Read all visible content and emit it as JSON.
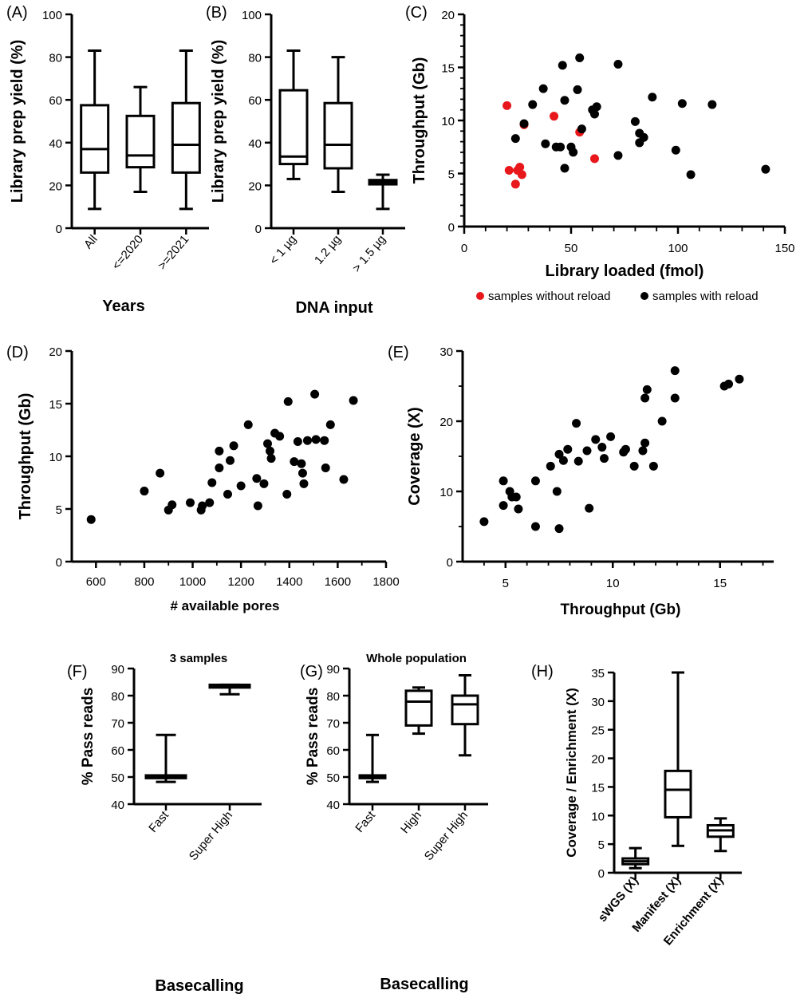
{
  "chart_data": [
    {
      "id": "A",
      "type": "box",
      "panel_label": "(A)",
      "title": "",
      "xlabel": "Years",
      "ylabel": "Library prep yield (%)",
      "ylim": [
        0,
        100
      ],
      "yticks": [
        "0",
        "20",
        "40",
        "60",
        "80",
        "100"
      ],
      "categories": [
        "All",
        "<=2020",
        ">=2021"
      ],
      "boxes": [
        {
          "min": 9,
          "q1": 26,
          "median": 37,
          "q3": 57.5,
          "max": 83
        },
        {
          "min": 17,
          "q1": 28.5,
          "median": 34,
          "q3": 52.5,
          "max": 66
        },
        {
          "min": 9,
          "q1": 26,
          "median": 39,
          "q3": 58.5,
          "max": 83
        }
      ]
    },
    {
      "id": "B",
      "type": "box",
      "panel_label": "(B)",
      "title": "",
      "xlabel": "DNA input",
      "ylabel": "Library prep yield (%)",
      "ylim": [
        0,
        100
      ],
      "yticks": [
        "0",
        "20",
        "40",
        "60",
        "80",
        "100"
      ],
      "categories": [
        "< 1 µg",
        "1.2 µg",
        "> 1.5 µg"
      ],
      "boxes": [
        {
          "min": 23,
          "q1": 30,
          "median": 33.5,
          "q3": 64.5,
          "max": 83
        },
        {
          "min": 17,
          "q1": 28,
          "median": 39,
          "q3": 58.5,
          "max": 80
        },
        {
          "min": 9,
          "q1": 20.5,
          "median": 21.5,
          "q3": 22.5,
          "max": 25
        }
      ]
    },
    {
      "id": "C",
      "type": "scatter",
      "panel_label": "(C)",
      "title": "",
      "xlabel": "Library loaded (fmol)",
      "ylabel": "Throughput (Gb)",
      "xlim": [
        0,
        150
      ],
      "ylim": [
        0,
        20
      ],
      "xticks": [
        "0",
        "50",
        "100",
        "150"
      ],
      "yticks": [
        "0",
        "5",
        "10",
        "15",
        "20"
      ],
      "legend": [
        {
          "label": "samples without reload",
          "color": "#e8171b"
        },
        {
          "label": "samples with reload",
          "color": "#000000"
        }
      ],
      "series": [
        {
          "name": "samples without reload",
          "color": "#e8171b",
          "points": [
            [
              20,
              11.4
            ],
            [
              21,
              5.3
            ],
            [
              24,
              4.0
            ],
            [
              25,
              5.3
            ],
            [
              26,
              5.6
            ],
            [
              27,
              4.9
            ],
            [
              28,
              9.6
            ],
            [
              42,
              10.4
            ],
            [
              54,
              8.9
            ],
            [
              61,
              6.4
            ]
          ]
        },
        {
          "name": "samples with reload",
          "color": "#000000",
          "points": [
            [
              24,
              8.3
            ],
            [
              28,
              9.7
            ],
            [
              32,
              11.5
            ],
            [
              37,
              13.0
            ],
            [
              38,
              7.8
            ],
            [
              43,
              7.5
            ],
            [
              45,
              7.5
            ],
            [
              46,
              15.2
            ],
            [
              47,
              11.9
            ],
            [
              47,
              5.5
            ],
            [
              50,
              7.5
            ],
            [
              51,
              7.0
            ],
            [
              53,
              12.9
            ],
            [
              54,
              15.9
            ],
            [
              55,
              9.2
            ],
            [
              60,
              11.0
            ],
            [
              61,
              10.6
            ],
            [
              62,
              11.3
            ],
            [
              72,
              15.3
            ],
            [
              72,
              6.7
            ],
            [
              80,
              9.9
            ],
            [
              82,
              8.8
            ],
            [
              82,
              7.9
            ],
            [
              84,
              8.4
            ],
            [
              88,
              12.2
            ],
            [
              99,
              7.2
            ],
            [
              102,
              11.6
            ],
            [
              106,
              4.9
            ],
            [
              116,
              11.5
            ],
            [
              141,
              5.4
            ]
          ]
        }
      ]
    },
    {
      "id": "D",
      "type": "scatter",
      "panel_label": "(D)",
      "title": "",
      "xlabel": "# available pores",
      "ylabel": "Throughput (Gb)",
      "xlim": [
        500,
        1800
      ],
      "ylim": [
        0,
        20
      ],
      "xticks": [
        "600",
        "800",
        "1000",
        "1200",
        "1400",
        "1600",
        "1800"
      ],
      "yticks": [
        "0",
        "5",
        "10",
        "15",
        "20"
      ],
      "series": [
        {
          "name": "",
          "color": "#000000",
          "points": [
            [
              580,
              4.0
            ],
            [
              800,
              6.7
            ],
            [
              865,
              8.4
            ],
            [
              900,
              4.9
            ],
            [
              915,
              5.4
            ],
            [
              990,
              5.6
            ],
            [
              1035,
              4.9
            ],
            [
              1040,
              5.3
            ],
            [
              1070,
              5.6
            ],
            [
              1080,
              7.5
            ],
            [
              1110,
              10.5
            ],
            [
              1110,
              8.9
            ],
            [
              1145,
              6.4
            ],
            [
              1155,
              9.6
            ],
            [
              1170,
              11.0
            ],
            [
              1200,
              7.2
            ],
            [
              1230,
              13.0
            ],
            [
              1265,
              7.9
            ],
            [
              1270,
              5.3
            ],
            [
              1295,
              7.4
            ],
            [
              1310,
              11.2
            ],
            [
              1320,
              10.5
            ],
            [
              1325,
              9.8
            ],
            [
              1340,
              12.2
            ],
            [
              1360,
              11.9
            ],
            [
              1390,
              6.4
            ],
            [
              1395,
              15.2
            ],
            [
              1420,
              9.5
            ],
            [
              1435,
              11.4
            ],
            [
              1450,
              9.3
            ],
            [
              1455,
              8.4
            ],
            [
              1460,
              7.4
            ],
            [
              1475,
              11.5
            ],
            [
              1505,
              15.9
            ],
            [
              1510,
              11.6
            ],
            [
              1545,
              11.5
            ],
            [
              1550,
              8.9
            ],
            [
              1570,
              13.0
            ],
            [
              1625,
              7.8
            ],
            [
              1665,
              15.3
            ]
          ]
        }
      ]
    },
    {
      "id": "E",
      "type": "scatter",
      "panel_label": "(E)",
      "title": "",
      "xlabel": "Throughput (Gb)",
      "ylabel": "Coverage (X)",
      "xlim": [
        3,
        17.5
      ],
      "ylim": [
        0,
        30
      ],
      "xticks": [
        "5",
        "10",
        "15"
      ],
      "xtick_values": [
        5,
        10,
        15
      ],
      "yticks": [
        "0",
        "10",
        "20",
        "30"
      ],
      "series": [
        {
          "name": "",
          "color": "#000000",
          "points": [
            [
              4.0,
              5.7
            ],
            [
              4.9,
              11.5
            ],
            [
              4.9,
              8.0
            ],
            [
              5.2,
              10.0
            ],
            [
              5.3,
              9.2
            ],
            [
              5.5,
              9.2
            ],
            [
              5.6,
              7.5
            ],
            [
              6.4,
              11.5
            ],
            [
              6.4,
              5.0
            ],
            [
              7.1,
              13.6
            ],
            [
              7.4,
              10.0
            ],
            [
              7.5,
              15.3
            ],
            [
              7.5,
              4.7
            ],
            [
              7.7,
              14.4
            ],
            [
              7.9,
              16.0
            ],
            [
              8.3,
              19.7
            ],
            [
              8.4,
              14.3
            ],
            [
              8.8,
              15.8
            ],
            [
              8.9,
              7.6
            ],
            [
              9.2,
              17.4
            ],
            [
              9.5,
              16.3
            ],
            [
              9.6,
              14.7
            ],
            [
              9.9,
              17.8
            ],
            [
              10.5,
              15.6
            ],
            [
              10.6,
              16.0
            ],
            [
              11.0,
              13.6
            ],
            [
              11.4,
              15.8
            ],
            [
              11.5,
              23.3
            ],
            [
              11.5,
              16.9
            ],
            [
              11.6,
              24.5
            ],
            [
              11.9,
              13.6
            ],
            [
              12.3,
              20.0
            ],
            [
              12.9,
              23.3
            ],
            [
              12.9,
              27.2
            ],
            [
              15.2,
              25.0
            ],
            [
              15.4,
              25.3
            ],
            [
              15.9,
              26.0
            ]
          ]
        }
      ]
    },
    {
      "id": "F",
      "type": "box",
      "panel_label": "(F)",
      "title": "3 samples",
      "xlabel": "Basecalling",
      "ylabel": "% Pass reads",
      "ylim": [
        40,
        90
      ],
      "yticks": [
        "40",
        "50",
        "60",
        "70",
        "80",
        "90"
      ],
      "categories": [
        "Fast",
        "Super High"
      ],
      "boxes": [
        {
          "min": 48.2,
          "q1": 49.6,
          "median": 50.1,
          "q3": 50.6,
          "max": 65.5
        },
        {
          "min": 80.5,
          "q1": 83.0,
          "median": 83.5,
          "q3": 84.0,
          "max": 84.0
        }
      ]
    },
    {
      "id": "G",
      "type": "box",
      "panel_label": "(G)",
      "title": "Whole population",
      "xlabel": "Basecalling",
      "ylabel": "% Pass reads",
      "ylim": [
        40,
        90
      ],
      "yticks": [
        "40",
        "50",
        "60",
        "70",
        "80",
        "90"
      ],
      "categories": [
        "Fast",
        "High",
        "Super High"
      ],
      "boxes": [
        {
          "min": 48.2,
          "q1": 49.6,
          "median": 50.1,
          "q3": 50.6,
          "max": 65.5
        },
        {
          "min": 66.0,
          "q1": 69.0,
          "median": 77.8,
          "q3": 81.8,
          "max": 83.0
        },
        {
          "min": 58.0,
          "q1": 69.5,
          "median": 76.8,
          "q3": 80.0,
          "max": 87.5
        }
      ]
    },
    {
      "id": "H",
      "type": "box",
      "panel_label": "(H)",
      "title": "",
      "xlabel": "",
      "ylabel": "Coverage / Enrichment (X)",
      "ylim": [
        0,
        35
      ],
      "yticks": [
        "0",
        "5",
        "10",
        "15",
        "20",
        "25",
        "30",
        "35"
      ],
      "categories": [
        "sWGS (X)",
        "Manifest (X)",
        "Enrichment (X)"
      ],
      "boxes": [
        {
          "min": 0.8,
          "q1": 1.5,
          "median": 2.0,
          "q3": 2.5,
          "max": 4.3
        },
        {
          "min": 4.7,
          "q1": 9.7,
          "median": 14.5,
          "q3": 17.8,
          "max": 35.0
        },
        {
          "min": 3.8,
          "q1": 6.3,
          "median": 7.4,
          "q3": 8.3,
          "max": 9.5
        }
      ]
    }
  ]
}
